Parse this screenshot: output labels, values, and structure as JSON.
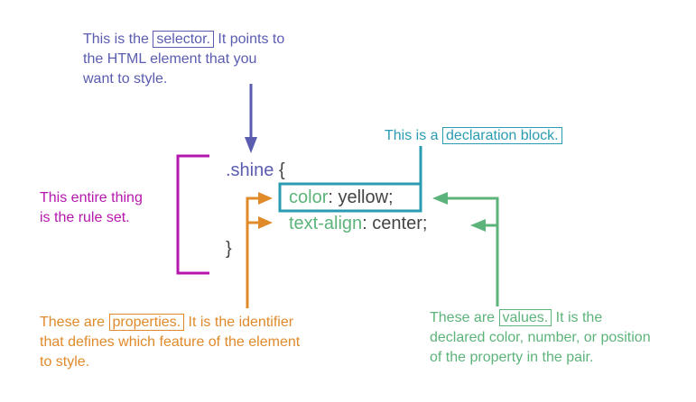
{
  "colors": {
    "selector": "#5a5cb0",
    "declaration": "#2a9bb0",
    "ruleset": "#b516ac",
    "properties": "#e08a2a",
    "values": "#5cb47a",
    "code": "#444444"
  },
  "selector_note": {
    "pre": "This is the",
    "term": "selector.",
    "line1_rest": " It points to",
    "line2": "the HTML element that you",
    "line3": "want to style."
  },
  "declaration_note": {
    "pre": "This is a",
    "term": "declaration block."
  },
  "ruleset_note": {
    "line1": "This entire thing",
    "line2": "is the rule set."
  },
  "properties_note": {
    "pre": "These are",
    "term": "properties.",
    "line1_rest": " It is the identifier",
    "line2": "that defines which feature of the element",
    "line3": "to style."
  },
  "values_note": {
    "pre": "These are",
    "term": "values.",
    "line1_rest": " It is the",
    "line2": "declared color, number, or position",
    "line3": "of the property in the pair."
  },
  "code": {
    "selector": ".shine",
    "open_brace": "{",
    "decl1_property": "color",
    "decl1_sep": ": ",
    "decl1_value": "yellow;",
    "decl2_property": "text-align",
    "decl2_sep": ": ",
    "decl2_value": "center;",
    "close_brace": "}"
  }
}
